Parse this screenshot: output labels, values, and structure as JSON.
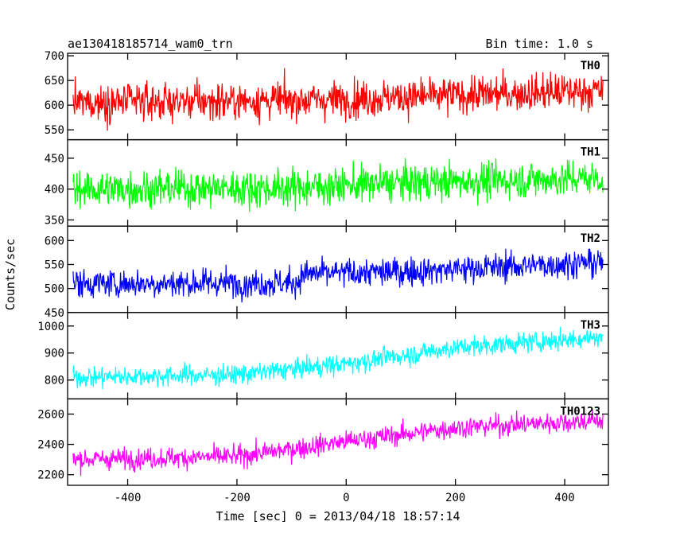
{
  "header": {
    "title": "ae130418185714_wam0_trn",
    "bin_time": "Bin time: 1.0 s"
  },
  "chart_data": {
    "type": "line",
    "title": "ae130418185714_wam0_trn",
    "subtitle": "Bin time: 1.0 s",
    "xlabel": "Time [sec] 0 = 2013/04/18 18:57:14",
    "ylabel": "Counts/sec",
    "xlim": [
      -510,
      480
    ],
    "x_ticks": [
      -400,
      -200,
      0,
      200,
      400
    ],
    "x_range": [
      -500,
      470
    ],
    "panels": [
      {
        "name": "TH0",
        "color": "#ff0000",
        "ylim": [
          530,
          705
        ],
        "y_ticks": [
          550,
          600,
          650,
          700
        ],
        "trend": [
          [
            -500,
            605
          ],
          [
            -100,
            610
          ],
          [
            0,
            612
          ],
          [
            200,
            620
          ],
          [
            470,
            630
          ]
        ],
        "noise": 35
      },
      {
        "name": "TH1",
        "color": "#00ff00",
        "ylim": [
          340,
          480
        ],
        "y_ticks": [
          350,
          400,
          450
        ],
        "trend": [
          [
            -500,
            400
          ],
          [
            -100,
            402
          ],
          [
            100,
            410
          ],
          [
            470,
            418
          ]
        ],
        "noise": 28
      },
      {
        "name": "TH2",
        "color": "#0000ff",
        "ylim": [
          450,
          630
        ],
        "y_ticks": [
          450,
          500,
          550,
          600
        ],
        "trend": [
          [
            -500,
            510
          ],
          [
            -90,
            512
          ],
          [
            -80,
            530
          ],
          [
            100,
            535
          ],
          [
            470,
            555
          ]
        ],
        "noise": 28
      },
      {
        "name": "TH3",
        "color": "#00ffff",
        "ylim": [
          730,
          1050
        ],
        "y_ticks": [
          800,
          900,
          1000
        ],
        "trend": [
          [
            -500,
            810
          ],
          [
            -200,
            820
          ],
          [
            0,
            860
          ],
          [
            200,
            920
          ],
          [
            470,
            960
          ]
        ],
        "noise": 35
      },
      {
        "name": "TH0123",
        "color": "#ff00ff",
        "ylim": [
          2130,
          2700
        ],
        "y_ticks": [
          2200,
          2400,
          2600
        ],
        "trend": [
          [
            -500,
            2300
          ],
          [
            -200,
            2320
          ],
          [
            0,
            2420
          ],
          [
            200,
            2510
          ],
          [
            470,
            2560
          ]
        ],
        "noise": 65
      }
    ]
  }
}
